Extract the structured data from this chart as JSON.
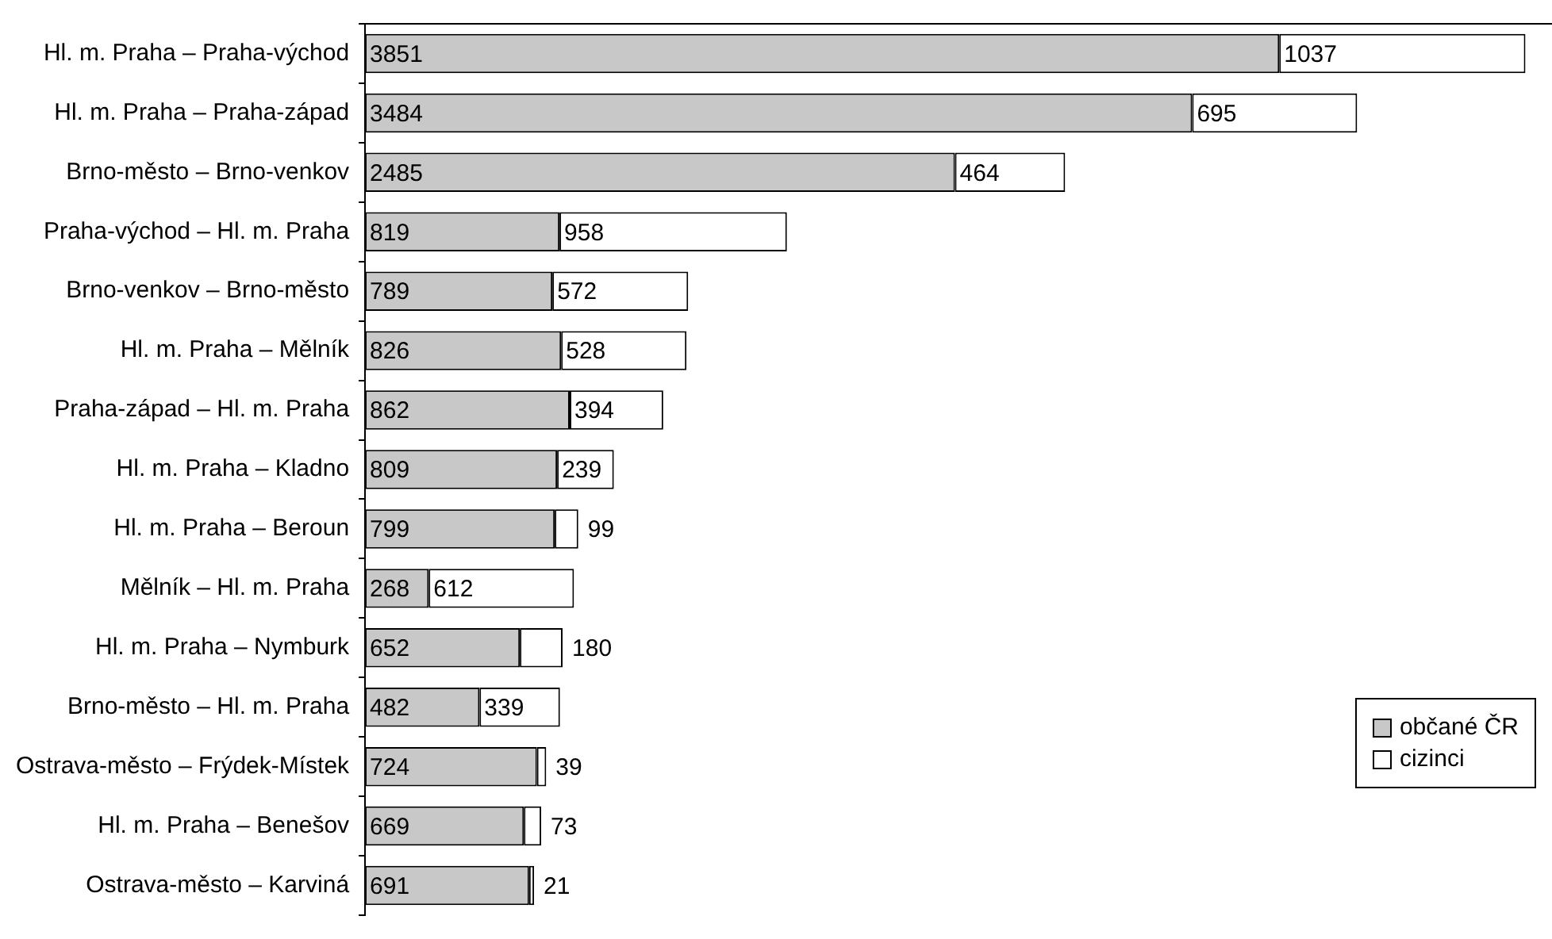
{
  "chart_data": {
    "type": "bar",
    "orientation": "horizontal",
    "stacked": true,
    "data_labels": true,
    "legend": "bottom right",
    "grid": false,
    "categories": [
      "Hl. m. Praha – Praha-východ",
      "Hl. m. Praha – Praha-západ",
      "Brno-město – Brno-venkov",
      "Praha-východ – Hl. m. Praha",
      "Brno-venkov – Brno-město",
      "Hl. m. Praha – Mělník",
      "Praha-západ – Hl. m. Praha",
      "Hl. m. Praha – Kladno",
      "Hl. m. Praha – Beroun",
      "Mělník – Hl. m. Praha",
      "Hl. m. Praha – Nymburk",
      "Brno-město – Hl. m. Praha",
      "Ostrava-město – Frýdek-Místek",
      "Hl. m. Praha – Benešov",
      "Ostrava-město – Karviná"
    ],
    "series": [
      {
        "name": "občané ČR",
        "color": "#c8c8c8",
        "values": [
          3851,
          3484,
          2485,
          819,
          789,
          826,
          862,
          809,
          799,
          268,
          652,
          482,
          724,
          669,
          691
        ]
      },
      {
        "name": "cizinci",
        "color": "#ffffff",
        "values": [
          1037,
          695,
          464,
          958,
          572,
          528,
          394,
          239,
          99,
          612,
          180,
          339,
          39,
          73,
          21
        ]
      }
    ]
  }
}
